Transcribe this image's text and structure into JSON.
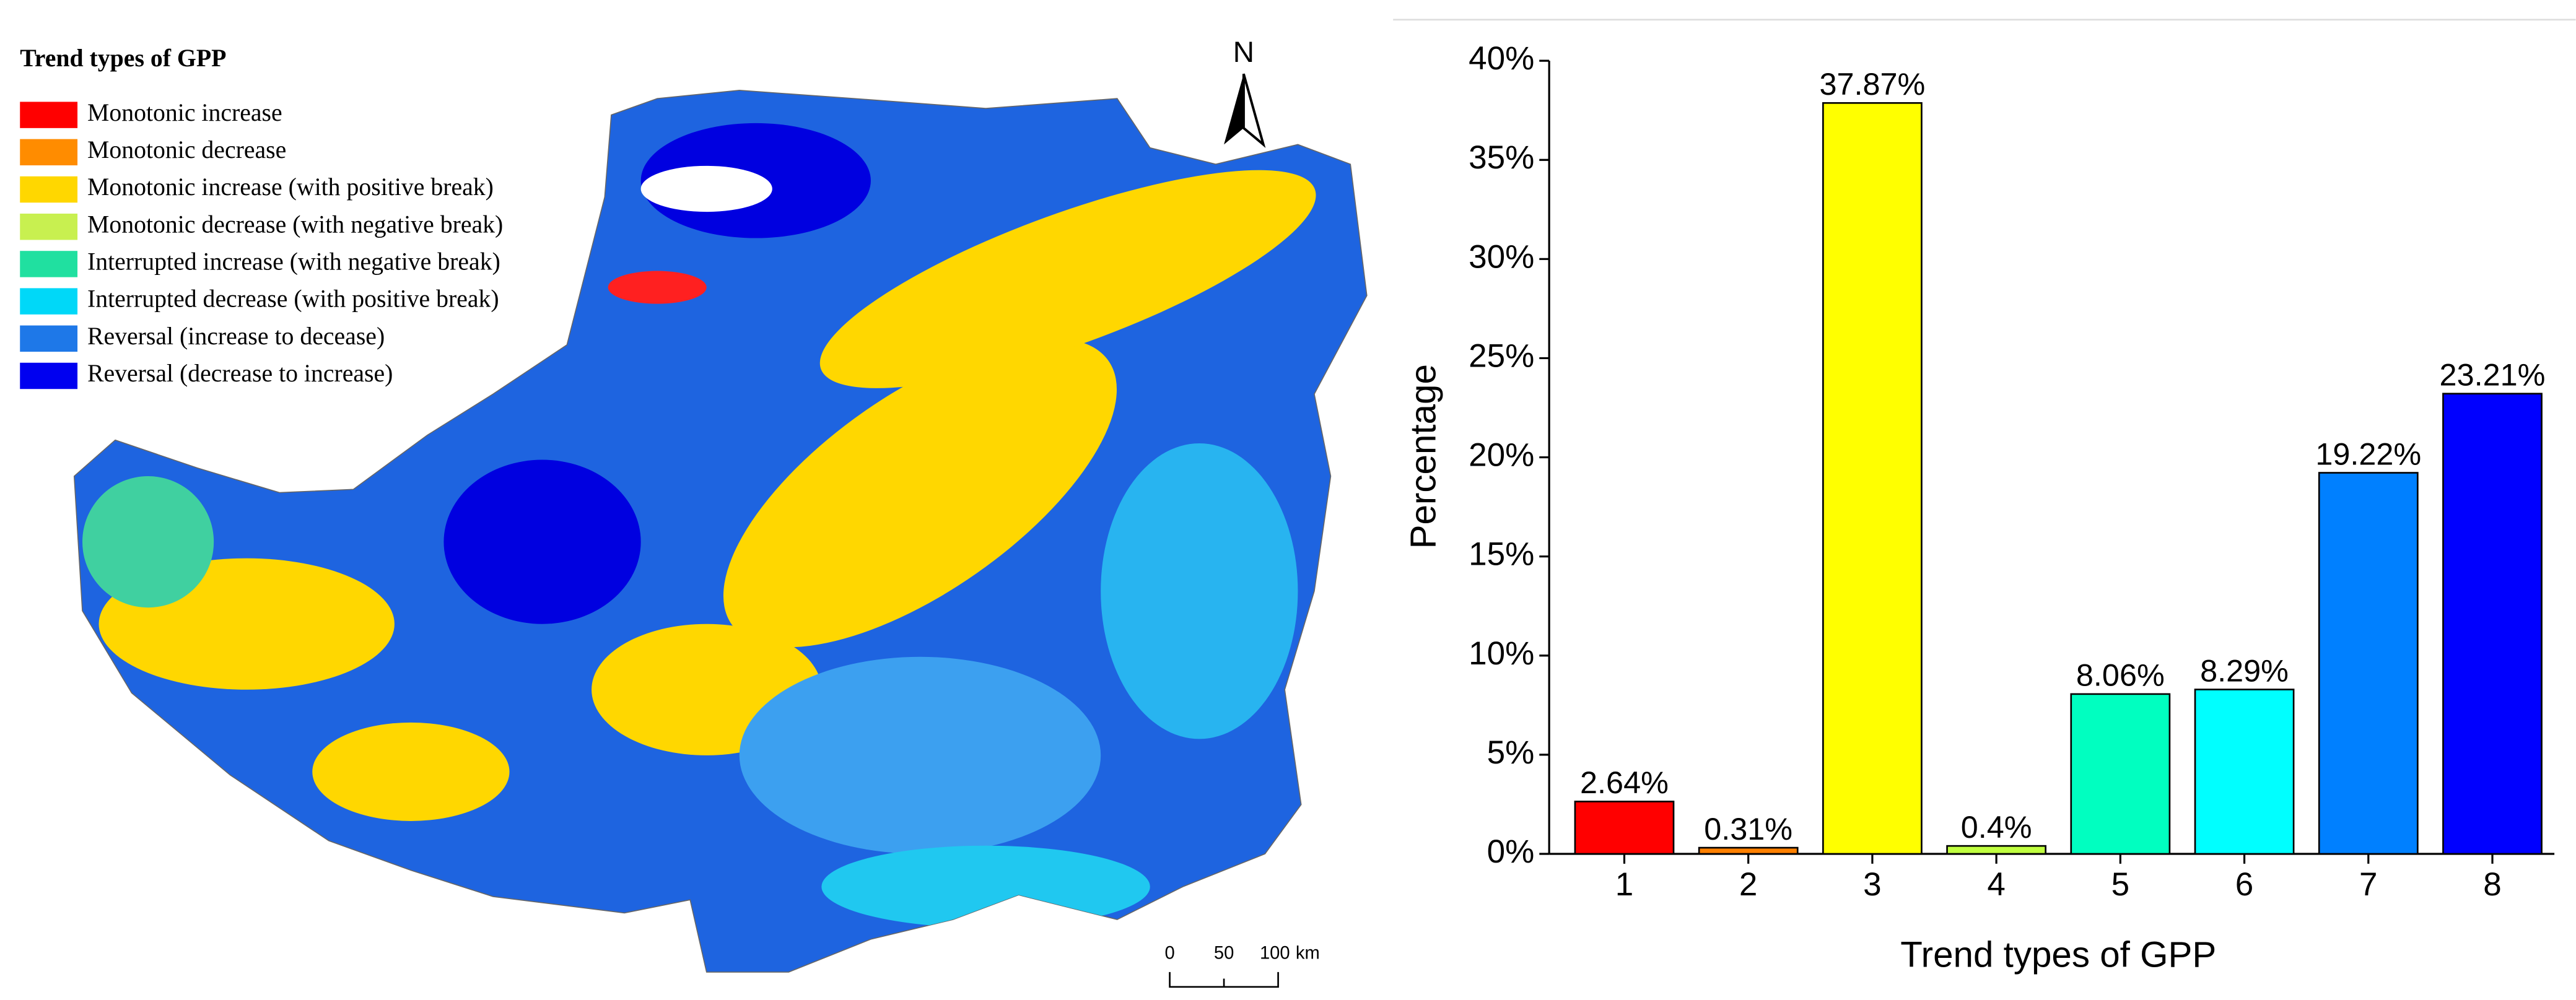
{
  "map": {
    "legend": {
      "title": "Trend types of GPP",
      "items": [
        {
          "label": "Monotonic increase",
          "color": "#ff0000"
        },
        {
          "label": "Monotonic decrease",
          "color": "#ff8c00"
        },
        {
          "label": "Monotonic increase (with positive break)",
          "color": "#ffd700"
        },
        {
          "label": "Monotonic decrease (with negative break)",
          "color": "#c8f050"
        },
        {
          "label": "Interrupted increase (with negative break)",
          "color": "#20e0a0"
        },
        {
          "label": "Interrupted decrease (with positive break)",
          "color": "#00d8f8"
        },
        {
          "label": "Reversal (increase to decease)",
          "color": "#1e78e8"
        },
        {
          "label": "Reversal (decrease to increase)",
          "color": "#0000f0"
        }
      ]
    },
    "north": "N",
    "scale_labels": [
      "0",
      "50",
      "100",
      "km"
    ]
  },
  "chart_data": {
    "type": "bar",
    "x_label": "Trend types of GPP",
    "y_label": "Percentage",
    "categories": [
      "1",
      "2",
      "3",
      "4",
      "5",
      "6",
      "7",
      "8"
    ],
    "values": [
      2.64,
      0.31,
      37.87,
      0.4,
      8.06,
      8.29,
      19.22,
      23.21
    ],
    "value_labels": [
      "2.64%",
      "0.31%",
      "37.87%",
      "0.4%",
      "8.06%",
      "8.29%",
      "19.22%",
      "23.21%"
    ],
    "colors": [
      "#ff0000",
      "#ff8000",
      "#ffff00",
      "#c0ff40",
      "#00ffc0",
      "#00ffff",
      "#0080ff",
      "#0000ff"
    ],
    "ylim": [
      0,
      40
    ],
    "yticks": [
      {
        "value": 0,
        "label": "0%"
      },
      {
        "value": 5,
        "label": "5%"
      },
      {
        "value": 10,
        "label": "10%"
      },
      {
        "value": 15,
        "label": "15%"
      },
      {
        "value": 20,
        "label": "20%"
      },
      {
        "value": 25,
        "label": "25%"
      },
      {
        "value": 30,
        "label": "30%"
      },
      {
        "value": 35,
        "label": "35%"
      },
      {
        "value": 40,
        "label": "40%"
      }
    ]
  }
}
